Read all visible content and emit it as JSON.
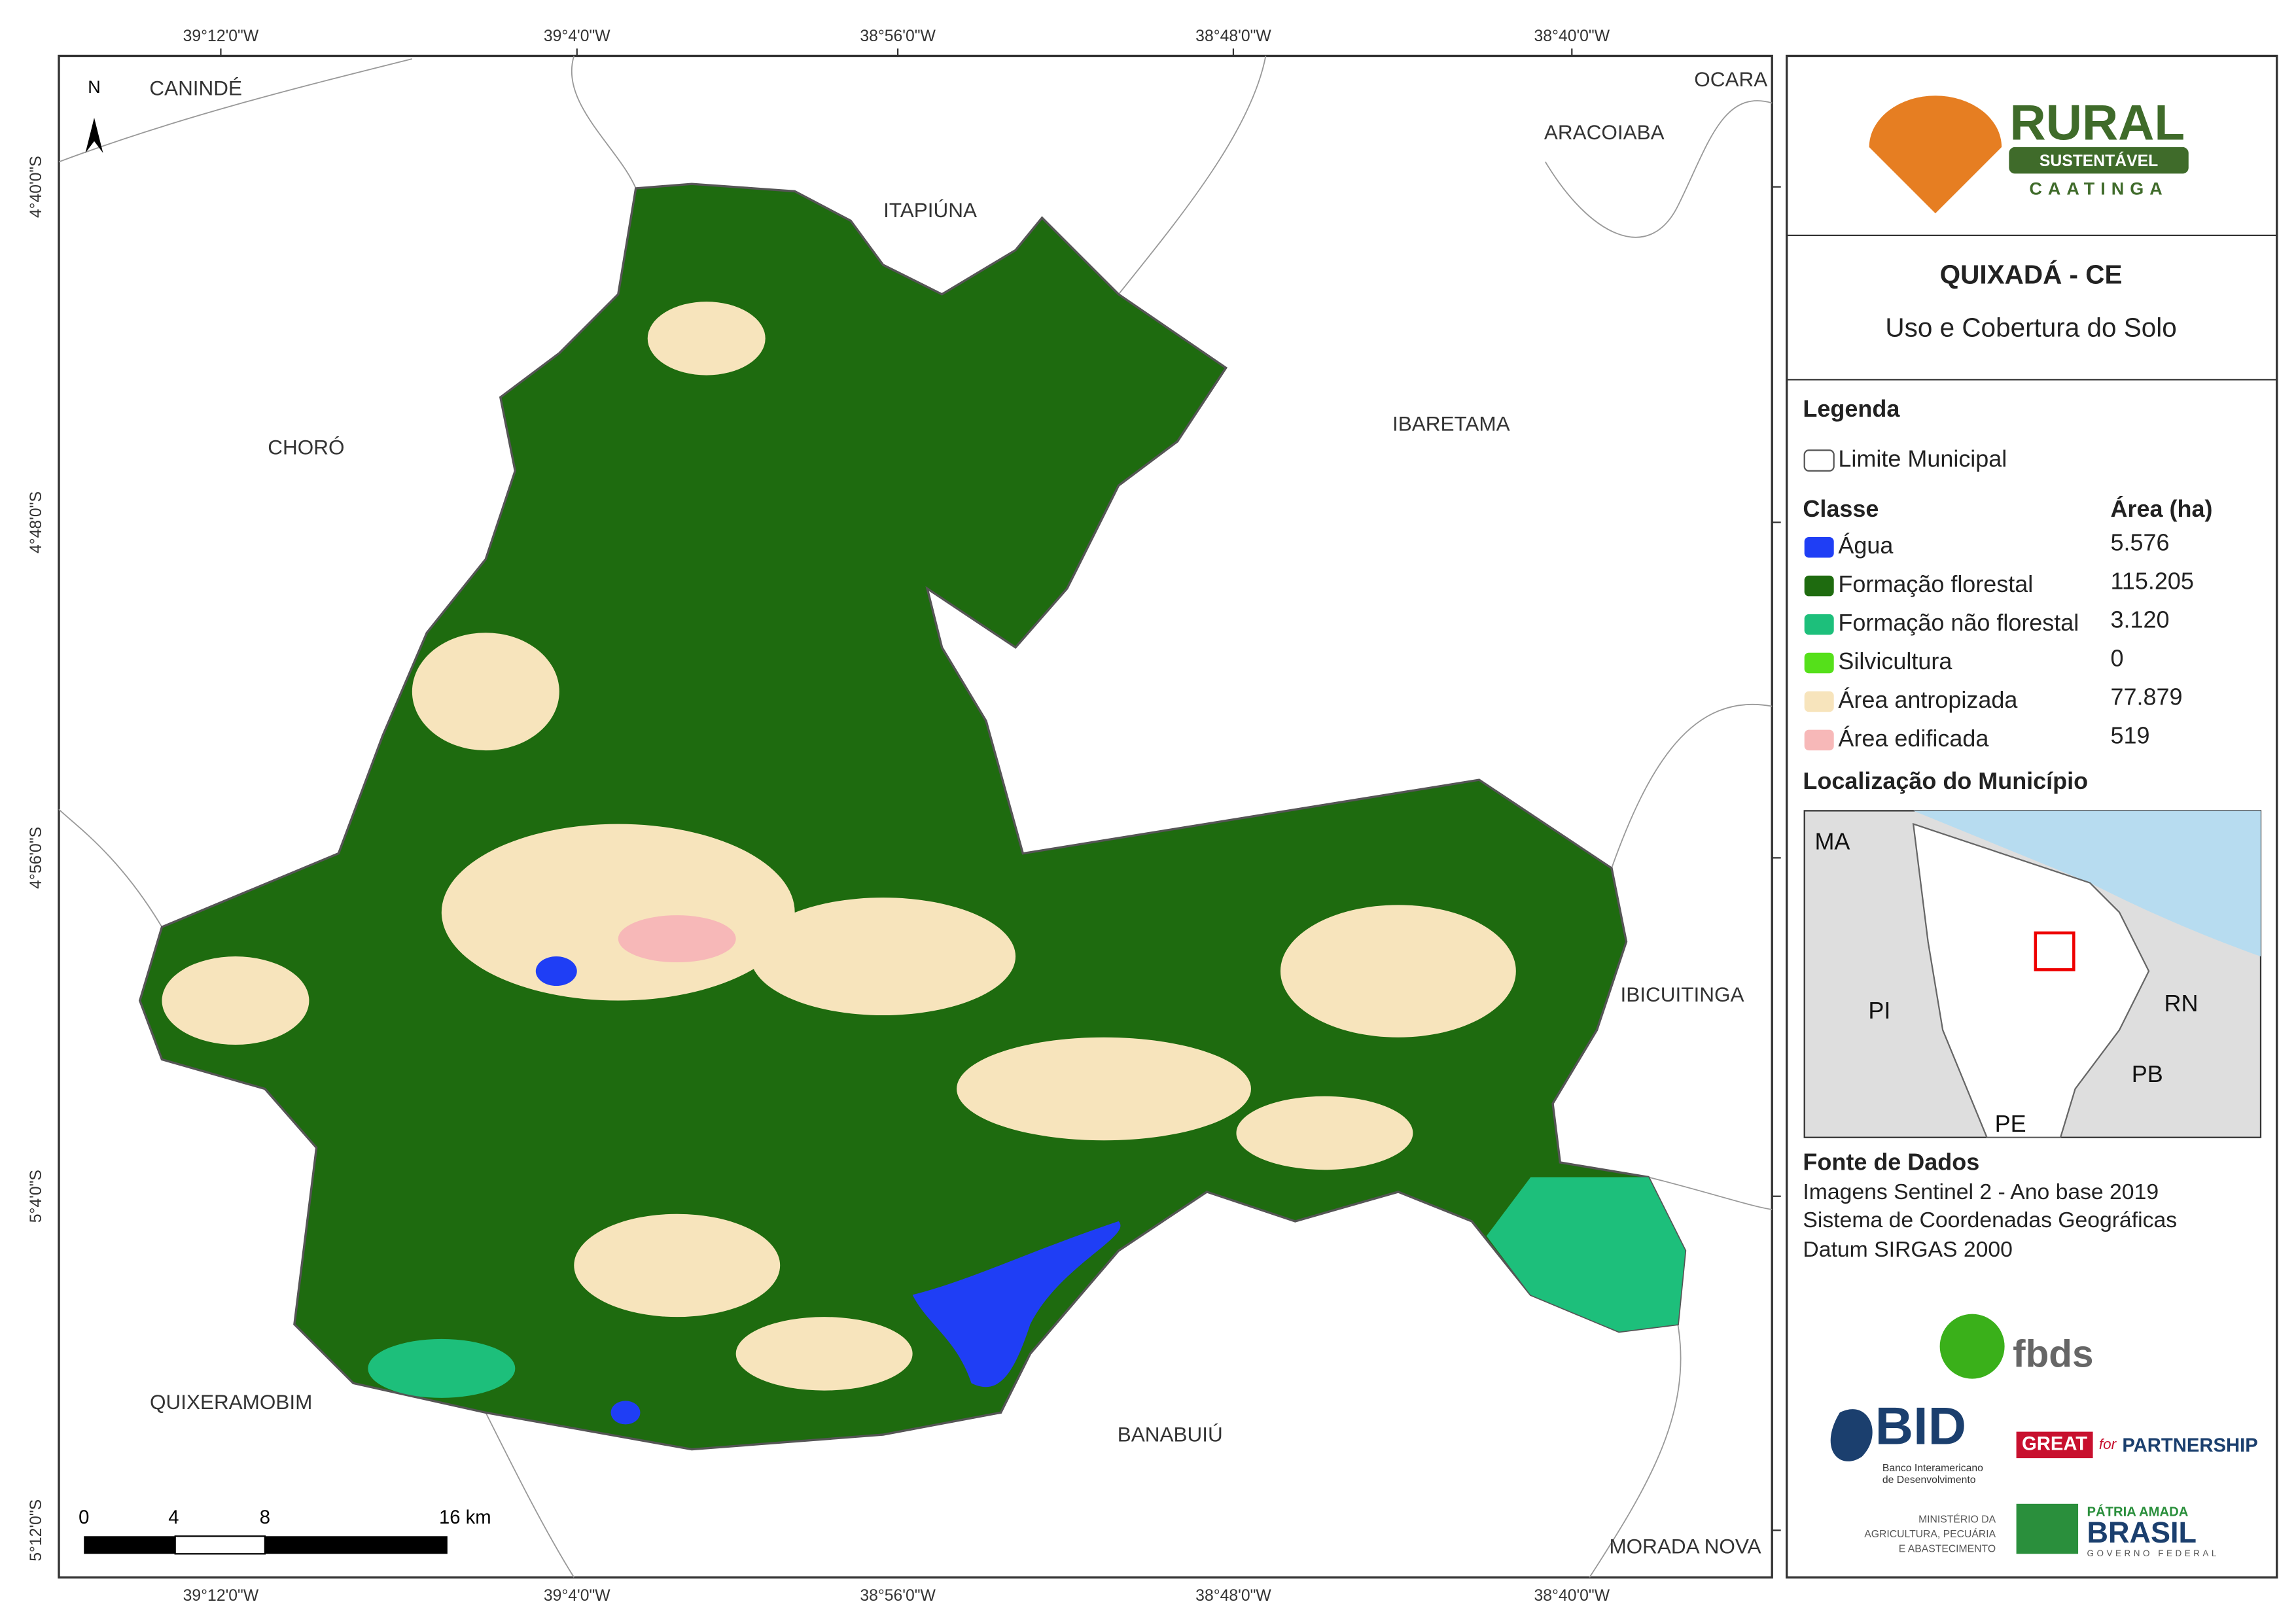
{
  "map": {
    "lon_labels": [
      "39°12'0\"W",
      "39°4'0\"W",
      "38°56'0\"W",
      "38°48'0\"W",
      "38°40'0\"W"
    ],
    "lat_labels": [
      "4°40'0\"S",
      "4°48'0\"S",
      "4°56'0\"S",
      "5°4'0\"S",
      "5°12'0\"S"
    ],
    "north": "N",
    "municipalities": [
      "CANINDÉ",
      "ITAPIÚNA",
      "ARACOIABA",
      "OCARA",
      "CHORÓ",
      "IBARETAMA",
      "IBICUITINGA",
      "QUIXERAMOBIM",
      "BANABUIÚ",
      "MORADA NOVA"
    ],
    "scale_labels": [
      "0",
      "4",
      "8",
      "16 km"
    ]
  },
  "legend": {
    "brand": {
      "name": "RURAL",
      "line2": "SUSTENTÁVEL",
      "line3": "CAATINGA"
    },
    "title": "QUIXADÁ - CE",
    "subtitle": "Uso e Cobertura do Solo",
    "heading": "Legenda",
    "boundary": "Limite Municipal",
    "class_header": "Classe",
    "area_header": "Área (ha)",
    "classes": [
      {
        "name": "Água",
        "color": "#1f3ef5",
        "area": "5.576"
      },
      {
        "name": "Formação florestal",
        "color": "#1e6b0f",
        "area": "115.205"
      },
      {
        "name": "Formação não florestal",
        "color": "#1dbf7b",
        "area": "3.120"
      },
      {
        "name": "Silvicultura",
        "color": "#55e01a",
        "area": "0"
      },
      {
        "name": "Área antropizada",
        "color": "#f7e4bc",
        "area": "77.879"
      },
      {
        "name": "Área edificada",
        "color": "#f7b8b8",
        "area": "519"
      }
    ],
    "location": {
      "title": "Localização do Município",
      "labels": [
        "MA",
        "PI",
        "RN",
        "PB",
        "PE"
      ]
    },
    "sources": {
      "title": "Fonte de Dados",
      "lines": [
        "Imagens Sentinel 2 - Ano base 2019",
        "Sistema de Coordenadas Geográficas",
        "Datum SIRGAS 2000"
      ]
    },
    "logos": {
      "fbds": "fbds",
      "bid": "BID",
      "bid_lines": [
        "Banco Interamericano",
        "de Desenvolvimento"
      ],
      "great": "GREAT",
      "for": "for",
      "partnership": "PARTNERSHIP",
      "ministry": [
        "MINISTÉRIO DA",
        "AGRICULTURA, PECUÁRIA",
        "E ABASTECIMENTO"
      ],
      "patria": "PÁTRIA AMADA",
      "brasil": "BRASIL",
      "gov": "GOVERNO FEDERAL"
    }
  }
}
